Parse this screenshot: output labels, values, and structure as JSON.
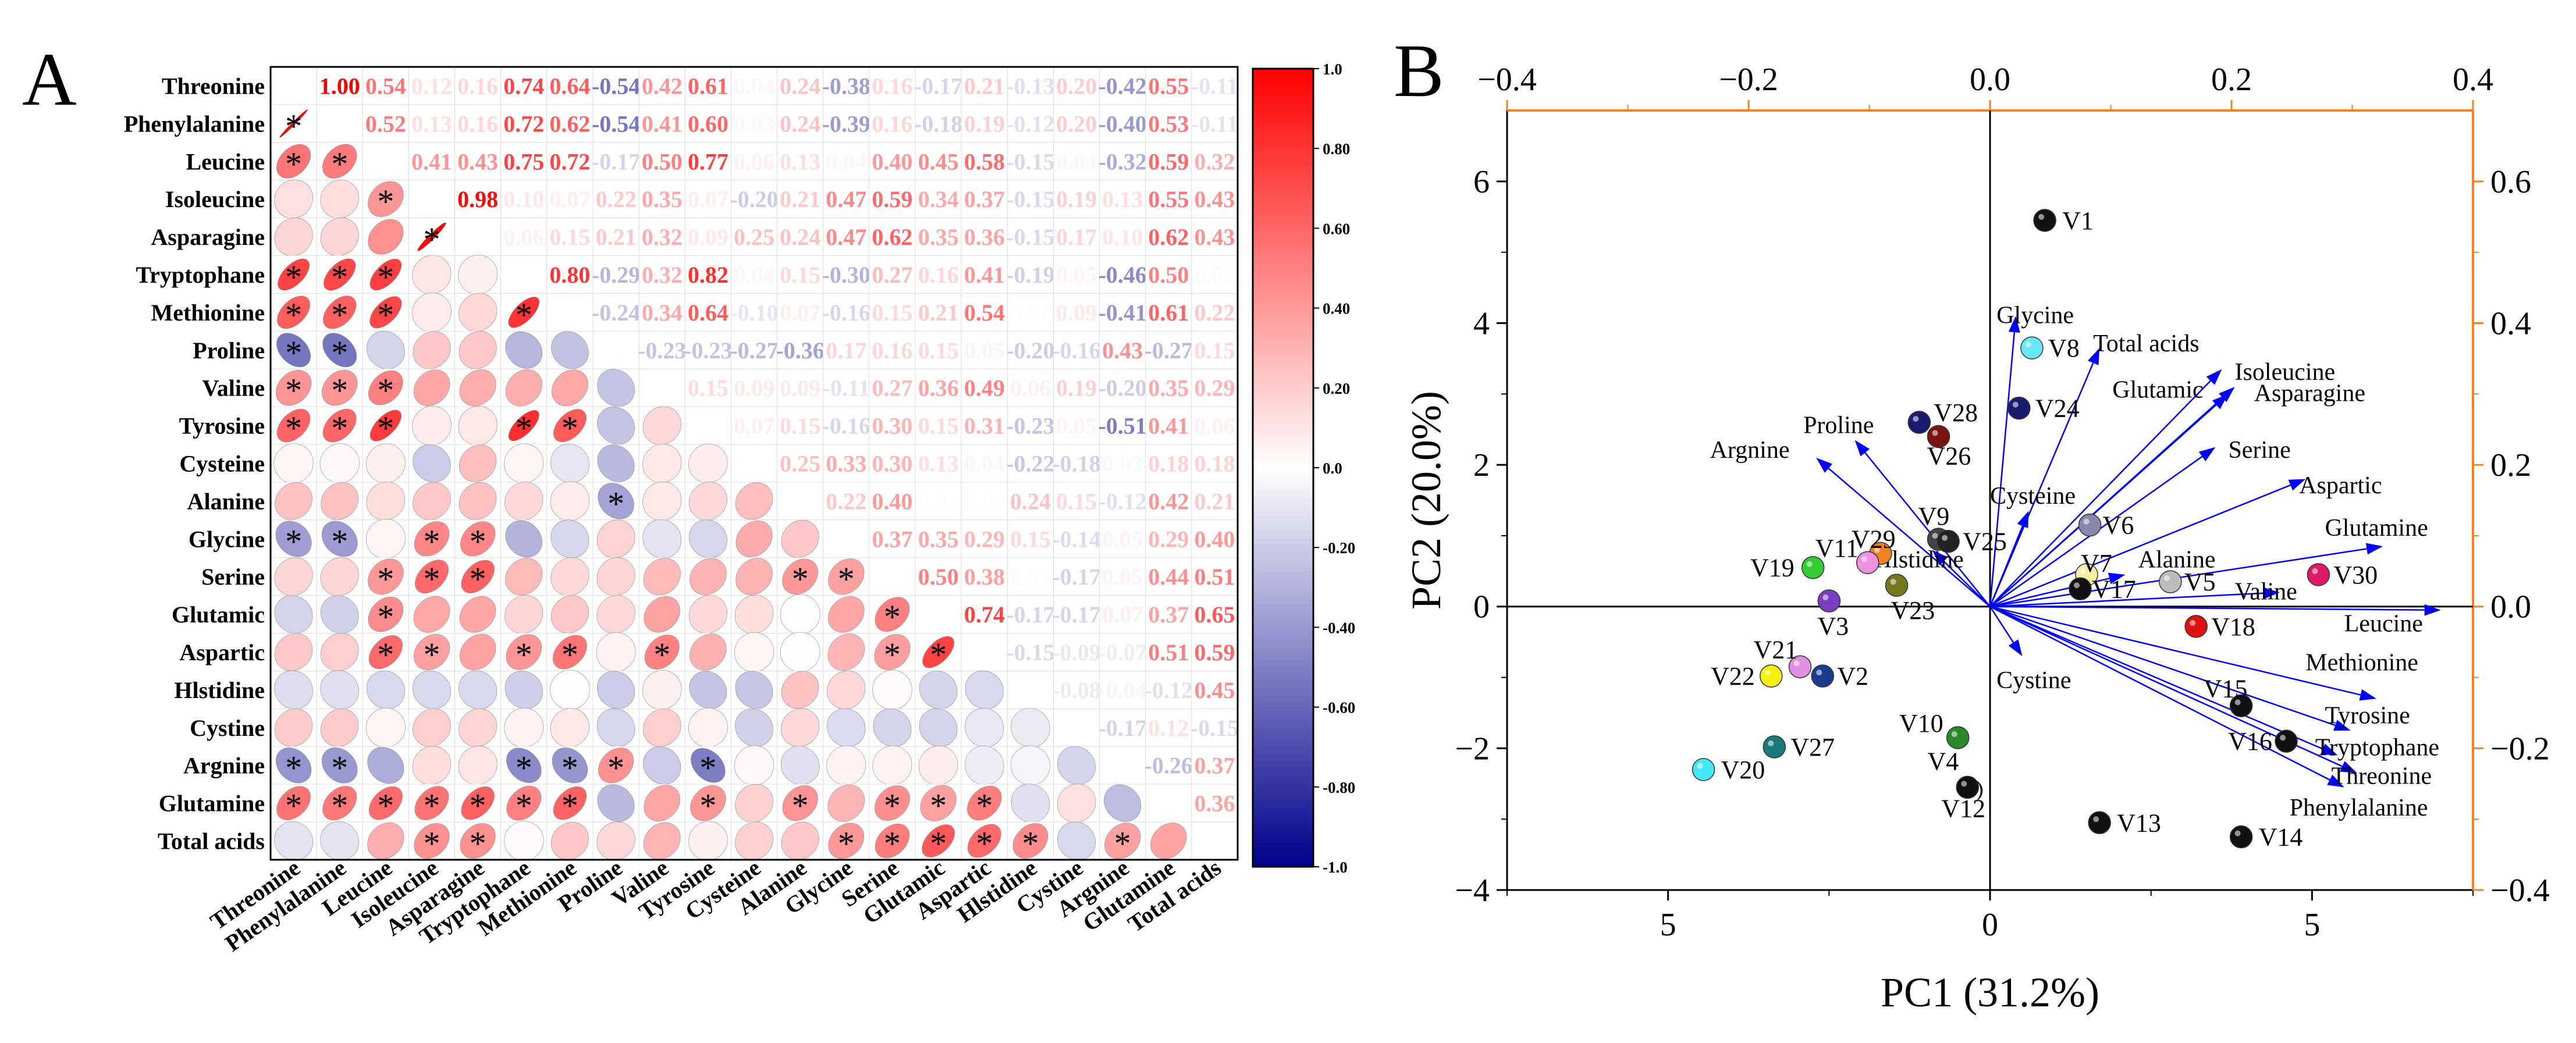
{
  "panel_a": {
    "label": "A"
  },
  "panel_b": {
    "label": "B"
  },
  "chart_data": [
    {
      "type": "heatmap",
      "title": "",
      "variables": [
        "Threonine",
        "Phenylalanine",
        "Leucine",
        "Isoleucine",
        "Asparagine",
        "Tryptophane",
        "Methionine",
        "Proline",
        "Valine",
        "Tyrosine",
        "Cysteine",
        "Alanine",
        "Glycine",
        "Serine",
        "Glutamic",
        "Aspartic",
        "Hlstidine",
        "Cystine",
        "Argnine",
        "Glutamine",
        "Total acids"
      ],
      "colorbar": {
        "min": -1.0,
        "max": 1.0,
        "ticks": [
          "1.0",
          "0.80",
          "0.60",
          "0.40",
          "0.20",
          "0.0",
          "-0.20",
          "-0.40",
          "-0.60",
          "-0.80",
          "-1.0"
        ],
        "high_color": "#ff0000",
        "mid_color": "#ffffff",
        "low_color": "#00008b"
      },
      "significance_marker": "*",
      "upper_values": [
        [
          "1.00",
          "0.54",
          "0.12",
          "0.16",
          "0.74",
          "0.64",
          "-0.54",
          "0.42",
          "0.61",
          "0.04",
          "0.24",
          "-0.38",
          "0.16",
          "-0.17",
          "0.21",
          "-0.13",
          "0.20",
          "-0.42",
          "0.55",
          "-0.11"
        ],
        [
          "0.52",
          "0.13",
          "0.16",
          "0.72",
          "0.62",
          "-0.54",
          "0.41",
          "0.60",
          "0.03",
          "0.24",
          "-0.39",
          "0.16",
          "-0.18",
          "0.19",
          "-0.12",
          "0.20",
          "-0.40",
          "0.53",
          "-0.11"
        ],
        [
          "0.41",
          "0.43",
          "0.75",
          "0.72",
          "-0.17",
          "0.50",
          "0.77",
          "0.06",
          "0.13",
          "0.04",
          "0.40",
          "0.45",
          "0.58",
          "-0.15",
          "0.04",
          "-0.32",
          "0.59",
          "0.32"
        ],
        [
          "0.98",
          "0.10",
          "0.07",
          "0.22",
          "0.35",
          "0.07",
          "-0.20",
          "0.21",
          "0.47",
          "0.59",
          "0.34",
          "0.37",
          "-0.15",
          "0.19",
          "0.13",
          "0.55",
          "0.43"
        ],
        [
          "0.06",
          "0.15",
          "0.21",
          "0.32",
          "0.09",
          "0.25",
          "0.24",
          "0.47",
          "0.62",
          "0.35",
          "0.36",
          "-0.15",
          "0.17",
          "0.10",
          "0.62",
          "0.43"
        ],
        [
          "0.80",
          "-0.29",
          "0.32",
          "0.82",
          "0.04",
          "0.15",
          "-0.30",
          "0.27",
          "0.16",
          "0.41",
          "-0.19",
          "0.05",
          "-0.46",
          "0.50",
          "0.02"
        ],
        [
          "-0.24",
          "0.34",
          "0.64",
          "-0.10",
          "0.07",
          "-0.16",
          "0.15",
          "0.21",
          "0.54",
          "0.01",
          "0.09",
          "-0.41",
          "0.61",
          "0.22"
        ],
        [
          "-0.23",
          "-0.23",
          "-0.27",
          "-0.36",
          "0.17",
          "0.16",
          "0.15",
          "0.05",
          "-0.20",
          "-0.16",
          "0.43",
          "-0.27",
          "0.15"
        ],
        [
          "0.15",
          "0.09",
          "0.09",
          "-0.11",
          "0.27",
          "0.36",
          "0.49",
          "0.06",
          "0.19",
          "-0.20",
          "0.35",
          "0.29"
        ],
        [
          "0.07",
          "0.15",
          "-0.16",
          "0.30",
          "0.15",
          "0.31",
          "-0.23",
          "0.05",
          "-0.51",
          "0.41",
          "0.06"
        ],
        [
          "0.25",
          "0.33",
          "0.30",
          "0.13",
          "0.04",
          "-0.22",
          "-0.18",
          "0.03",
          "0.18",
          "0.18"
        ],
        [
          "0.22",
          "0.40",
          "0.01",
          "0.01",
          "0.24",
          "0.15",
          "-0.12",
          "0.42",
          "0.21"
        ],
        [
          "0.37",
          "0.35",
          "0.29",
          "0.15",
          "-0.14",
          "0.05",
          "0.29",
          "0.40"
        ],
        [
          "0.50",
          "0.38",
          "0.02",
          "-0.17",
          "0.05",
          "0.44",
          "0.51"
        ],
        [
          "0.74",
          "-0.17",
          "-0.17",
          "0.07",
          "0.37",
          "0.65"
        ],
        [
          "-0.15",
          "-0.09",
          "-0.07",
          "0.51",
          "0.59"
        ],
        [
          "-0.08",
          "-0.04",
          "-0.12",
          "0.45"
        ],
        [
          "-0.17",
          "0.12",
          "-0.15"
        ],
        [
          "-0.26",
          "0.37"
        ],
        [
          "0.36"
        ]
      ],
      "significant_lower_cells": [
        [
          1,
          0
        ],
        [
          2,
          0
        ],
        [
          2,
          1
        ],
        [
          3,
          2
        ],
        [
          4,
          3
        ],
        [
          5,
          0
        ],
        [
          5,
          1
        ],
        [
          5,
          2
        ],
        [
          6,
          0
        ],
        [
          6,
          1
        ],
        [
          6,
          2
        ],
        [
          6,
          5
        ],
        [
          7,
          0
        ],
        [
          7,
          1
        ],
        [
          8,
          0
        ],
        [
          8,
          1
        ],
        [
          8,
          2
        ],
        [
          9,
          0
        ],
        [
          9,
          1
        ],
        [
          9,
          2
        ],
        [
          9,
          5
        ],
        [
          9,
          6
        ],
        [
          11,
          7
        ],
        [
          12,
          0
        ],
        [
          12,
          1
        ],
        [
          12,
          3
        ],
        [
          12,
          4
        ],
        [
          13,
          2
        ],
        [
          13,
          3
        ],
        [
          13,
          4
        ],
        [
          13,
          11
        ],
        [
          13,
          12
        ],
        [
          14,
          2
        ],
        [
          14,
          13
        ],
        [
          15,
          2
        ],
        [
          15,
          3
        ],
        [
          15,
          5
        ],
        [
          15,
          6
        ],
        [
          15,
          8
        ],
        [
          15,
          13
        ],
        [
          15,
          14
        ],
        [
          18,
          0
        ],
        [
          18,
          1
        ],
        [
          18,
          5
        ],
        [
          18,
          6
        ],
        [
          18,
          7
        ],
        [
          18,
          9
        ],
        [
          19,
          0
        ],
        [
          19,
          1
        ],
        [
          19,
          2
        ],
        [
          19,
          3
        ],
        [
          19,
          4
        ],
        [
          19,
          5
        ],
        [
          19,
          6
        ],
        [
          19,
          9
        ],
        [
          19,
          11
        ],
        [
          19,
          13
        ],
        [
          19,
          14
        ],
        [
          19,
          15
        ],
        [
          20,
          3
        ],
        [
          20,
          4
        ],
        [
          20,
          12
        ],
        [
          20,
          13
        ],
        [
          20,
          14
        ],
        [
          20,
          15
        ],
        [
          20,
          16
        ],
        [
          20,
          18
        ]
      ]
    },
    {
      "type": "scatter",
      "subtype": "biplot",
      "xlabel": "PC1 (31.2%)",
      "ylabel": "PC2 (20.0%)",
      "xlim": [
        -7.5,
        7.5
      ],
      "ylim": [
        -4,
        7
      ],
      "x_ticks": [
        "5",
        "0",
        "5"
      ],
      "x_tick_values": [
        -5,
        0,
        5
      ],
      "y_ticks": [
        "6",
        "4",
        "2",
        "0",
        "−2",
        "−4"
      ],
      "y_tick_values": [
        6,
        4,
        2,
        0,
        -2,
        -4
      ],
      "top_axis": {
        "range": [
          -0.4,
          0.4
        ],
        "ticks": [
          "−0.4",
          "−0.2",
          "0.0",
          "0.2",
          "0.4"
        ],
        "values": [
          -0.4,
          -0.2,
          0.0,
          0.2,
          0.4
        ]
      },
      "right_axis": {
        "range": [
          -0.4,
          0.7
        ],
        "ticks": [
          "0.6",
          "0.4",
          "0.2",
          "0.0",
          "−0.2",
          "−0.4"
        ],
        "values": [
          0.6,
          0.4,
          0.2,
          0.0,
          -0.2,
          -0.4
        ]
      },
      "axis_accent_color": "#f5821f",
      "vector_color": "#0000ff",
      "samples": [
        {
          "name": "V1",
          "x": 0.85,
          "y": 5.45,
          "color": "#111111"
        },
        {
          "name": "V8",
          "x": 0.65,
          "y": 3.65,
          "color": "#66e8f5"
        },
        {
          "name": "V24",
          "x": 0.45,
          "y": 2.8,
          "color": "#1a1a6e"
        },
        {
          "name": "V28",
          "x": -1.1,
          "y": 2.6,
          "color": "#1a1a6e"
        },
        {
          "name": "V26",
          "x": -0.8,
          "y": 2.4,
          "color": "#7a1410"
        },
        {
          "name": "V9",
          "x": -0.8,
          "y": 0.95,
          "color": "#444444"
        },
        {
          "name": "V25",
          "x": -0.65,
          "y": 0.92,
          "color": "#222222"
        },
        {
          "name": "V29",
          "x": -1.7,
          "y": 0.75,
          "color": "#f08020"
        },
        {
          "name": "V11",
          "x": -1.9,
          "y": 0.62,
          "color": "#f090e0"
        },
        {
          "name": "V19",
          "x": -2.75,
          "y": 0.55,
          "color": "#33cc33"
        },
        {
          "name": "V23",
          "x": -1.45,
          "y": 0.3,
          "color": "#777722"
        },
        {
          "name": "V3",
          "x": -2.5,
          "y": 0.08,
          "color": "#7a3fc0"
        },
        {
          "name": "V6",
          "x": 1.55,
          "y": 1.15,
          "color": "#8888aa"
        },
        {
          "name": "V7",
          "x": 1.5,
          "y": 0.45,
          "color": "#f5f0a0"
        },
        {
          "name": "V17",
          "x": 1.4,
          "y": 0.25,
          "color": "#111111"
        },
        {
          "name": "V5",
          "x": 2.8,
          "y": 0.35,
          "color": "#bbbbbb"
        },
        {
          "name": "V30",
          "x": 5.1,
          "y": 0.45,
          "color": "#e0186a"
        },
        {
          "name": "V18",
          "x": 3.2,
          "y": -0.28,
          "color": "#e01010"
        },
        {
          "name": "V21",
          "x": -2.95,
          "y": -0.85,
          "color": "#e090e0"
        },
        {
          "name": "V22",
          "x": -3.4,
          "y": -0.98,
          "color": "#f5f010"
        },
        {
          "name": "V2",
          "x": -2.6,
          "y": -0.98,
          "color": "#1a3c90"
        },
        {
          "name": "V10",
          "x": -0.5,
          "y": -1.85,
          "color": "#2a8a2a"
        },
        {
          "name": "V27",
          "x": -3.35,
          "y": -1.98,
          "color": "#1a7a7a"
        },
        {
          "name": "V20",
          "x": -4.45,
          "y": -2.3,
          "color": "#44e8f5"
        },
        {
          "name": "V4",
          "x": -0.35,
          "y": -2.55,
          "color": "#111111"
        },
        {
          "name": "V12",
          "x": -0.35,
          "y": -2.6,
          "color": "#111111"
        },
        {
          "name": "V13",
          "x": 1.7,
          "y": -3.05,
          "color": "#111111"
        },
        {
          "name": "V14",
          "x": 3.9,
          "y": -3.25,
          "color": "#111111"
        },
        {
          "name": "V15",
          "x": 3.9,
          "y": -1.4,
          "color": "#111111"
        },
        {
          "name": "V16",
          "x": 4.6,
          "y": -1.9,
          "color": "#111111"
        }
      ],
      "variables": [
        {
          "name": "Glycine",
          "x": 0.4,
          "y": 4.1
        },
        {
          "name": "Total  acids",
          "x": 1.7,
          "y": 3.65
        },
        {
          "name": "Glutamic",
          "x": 3.8,
          "y": 3.1
        },
        {
          "name": "Isoleucine",
          "x": 3.6,
          "y": 3.35
        },
        {
          "name": "Asparagine",
          "x": 3.7,
          "y": 3.0
        },
        {
          "name": "Serine",
          "x": 3.5,
          "y": 2.25
        },
        {
          "name": "Aspartic",
          "x": 4.9,
          "y": 1.8
        },
        {
          "name": "Glutamine",
          "x": 6.1,
          "y": 0.85
        },
        {
          "name": "Valine",
          "x": 4.5,
          "y": 0.2
        },
        {
          "name": "Leucine",
          "x": 7.0,
          "y": -0.05
        },
        {
          "name": "Alanine",
          "x": 2.1,
          "y": 0.45
        },
        {
          "name": "Cysteine",
          "x": 0.6,
          "y": 1.35
        },
        {
          "name": "Proline",
          "x": -2.1,
          "y": 2.35
        },
        {
          "name": "Argnine",
          "x": -2.7,
          "y": 2.1
        },
        {
          "name": "Hlstidine",
          "x": -0.9,
          "y": 0.8
        },
        {
          "name": "Cystine",
          "x": 0.5,
          "y": -0.7
        },
        {
          "name": "Methionine",
          "x": 6.0,
          "y": -1.3
        },
        {
          "name": "Tyrosine",
          "x": 5.6,
          "y": -1.75
        },
        {
          "name": "Tryptophane",
          "x": 5.4,
          "y": -2.1
        },
        {
          "name": "Threonine",
          "x": 5.7,
          "y": -2.35
        },
        {
          "name": "Phenylalanine",
          "x": 5.5,
          "y": -2.55
        }
      ],
      "variable_labels": [
        {
          "name": "Glycine",
          "x": 0.1,
          "y": 4.0
        },
        {
          "name": "Total  acids",
          "x": 1.6,
          "y": 3.6
        },
        {
          "name": "Isoleucine",
          "x": 3.8,
          "y": 3.2
        },
        {
          "name": "Glutamic",
          "x": 1.9,
          "y": 2.95
        },
        {
          "name": "Asparagine",
          "x": 4.1,
          "y": 2.9
        },
        {
          "name": "Serine",
          "x": 3.7,
          "y": 2.1
        },
        {
          "name": "Aspartic",
          "x": 4.8,
          "y": 1.6
        },
        {
          "name": "Glutamine",
          "x": 5.2,
          "y": 1.0
        },
        {
          "name": "Alanine",
          "x": 2.3,
          "y": 0.55
        },
        {
          "name": "Valine",
          "x": 3.8,
          "y": 0.1
        },
        {
          "name": "Leucine",
          "x": 5.5,
          "y": -0.35
        },
        {
          "name": "Cysteine",
          "x": 0.0,
          "y": 1.45
        },
        {
          "name": "Proline",
          "x": -2.9,
          "y": 2.45
        },
        {
          "name": "Argnine",
          "x": -4.35,
          "y": 2.1
        },
        {
          "name": "Hlstidine",
          "x": -1.8,
          "y": 0.55
        },
        {
          "name": "Cystine",
          "x": 0.1,
          "y": -1.15
        },
        {
          "name": "Methionine",
          "x": 4.9,
          "y": -0.9
        },
        {
          "name": "Tyrosine",
          "x": 5.2,
          "y": -1.65
        },
        {
          "name": "Tryptophane",
          "x": 5.05,
          "y": -2.1
        },
        {
          "name": "Threonine",
          "x": 5.3,
          "y": -2.5
        },
        {
          "name": "Phenylalanine",
          "x": 4.65,
          "y": -2.95
        }
      ]
    }
  ]
}
